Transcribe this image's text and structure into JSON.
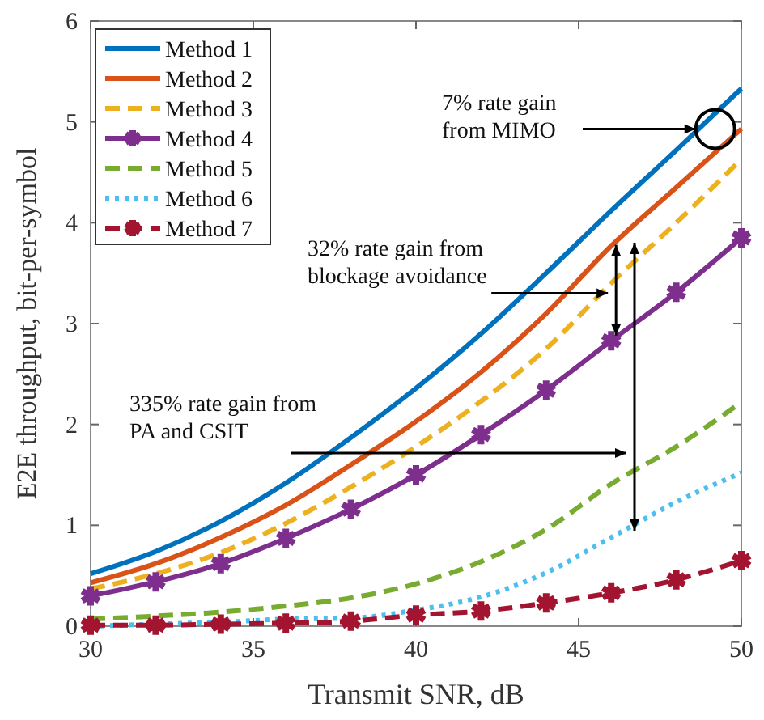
{
  "chart_data": {
    "type": "line",
    "xlabel": "Transmit SNR, dB",
    "ylabel": "E2E throughput, bit-per-symbol",
    "x": [
      30,
      32,
      34,
      36,
      38,
      40,
      42,
      44,
      46,
      48,
      50
    ],
    "xlim": [
      30,
      50
    ],
    "xticks": [
      30,
      35,
      40,
      45,
      50
    ],
    "ylim": [
      0,
      6
    ],
    "yticks": [
      0,
      1,
      2,
      3,
      4,
      5,
      6
    ],
    "grid": false,
    "legend": "top left",
    "series": [
      {
        "name": "Method 1",
        "color": "#0072bd",
        "line_style": "solid",
        "marker": "none",
        "values": [
          0.52,
          0.74,
          1.04,
          1.42,
          1.87,
          2.36,
          2.9,
          3.5,
          4.12,
          4.72,
          5.33
        ]
      },
      {
        "name": "Method 2",
        "color": "#d95319",
        "line_style": "solid",
        "marker": "none",
        "values": [
          0.43,
          0.62,
          0.88,
          1.2,
          1.6,
          2.03,
          2.52,
          3.1,
          3.77,
          4.35,
          4.93
        ]
      },
      {
        "name": "Method 3",
        "color": "#edb120",
        "line_style": "dashed",
        "marker": "none",
        "values": [
          0.37,
          0.52,
          0.73,
          1.02,
          1.38,
          1.78,
          2.23,
          2.75,
          3.4,
          4.0,
          4.63
        ]
      },
      {
        "name": "Method 4",
        "color": "#7e2f8e",
        "line_style": "solid",
        "marker": "cross",
        "values": [
          0.3,
          0.44,
          0.62,
          0.87,
          1.16,
          1.5,
          1.9,
          2.34,
          2.83,
          3.31,
          3.85
        ]
      },
      {
        "name": "Method 5",
        "color": "#77ac30",
        "line_style": "dashed",
        "marker": "none",
        "values": [
          0.07,
          0.1,
          0.14,
          0.2,
          0.28,
          0.42,
          0.64,
          0.96,
          1.41,
          1.78,
          2.22
        ]
      },
      {
        "name": "Method 6",
        "color": "#4dbeee",
        "line_style": "dotted",
        "marker": "none",
        "values": [
          0.0,
          0.02,
          0.04,
          0.07,
          0.08,
          0.16,
          0.29,
          0.53,
          0.88,
          1.23,
          1.52
        ]
      },
      {
        "name": "Method 7",
        "color": "#a2142f",
        "line_style": "dashed",
        "marker": "cross",
        "values": [
          0.01,
          0.01,
          0.02,
          0.03,
          0.05,
          0.11,
          0.15,
          0.23,
          0.33,
          0.46,
          0.65
        ]
      }
    ],
    "annotations": [
      {
        "text": "7% rate gain\nfrom MIMO",
        "x": 48.6,
        "y": 4.93
      },
      {
        "text": "32% rate gain from\nblockage avoidance",
        "x": 45.9,
        "y": 3.3
      },
      "335% rate gain from\nPA and CSIT"
    ]
  }
}
